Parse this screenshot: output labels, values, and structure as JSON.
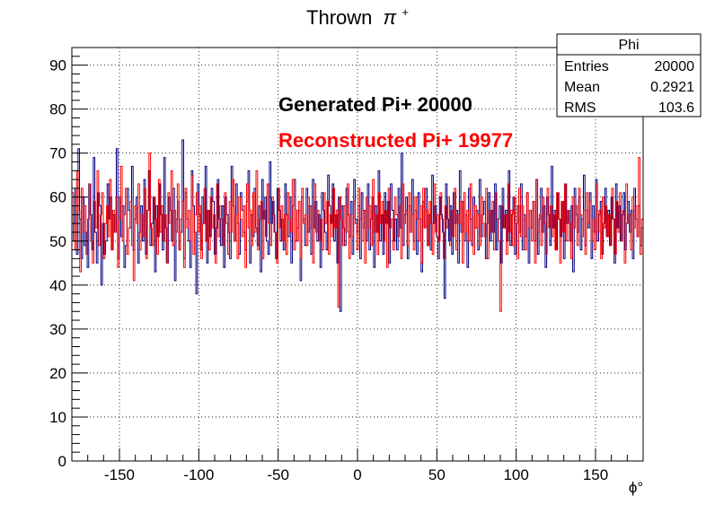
{
  "chart_data": {
    "type": "histogram",
    "title": "Thrown",
    "title_symbol": "π",
    "title_superscript": "+",
    "xlabel": "ϕ°",
    "ylabel": "",
    "xlim": [
      -180,
      180
    ],
    "ylim": [
      0,
      94
    ],
    "x_ticks": [
      -150,
      -100,
      -50,
      0,
      50,
      100,
      150
    ],
    "y_ticks": [
      0,
      10,
      20,
      30,
      40,
      50,
      60,
      70,
      80,
      90
    ],
    "grid": true,
    "bins": 360,
    "series": [
      {
        "color": "#000080",
        "values": [
          58,
          50,
          62,
          47,
          71,
          55,
          46,
          60,
          49,
          52,
          44,
          63,
          56,
          48,
          69,
          52,
          45,
          61,
          58,
          40,
          54,
          47,
          50,
          63,
          55,
          60,
          48,
          56,
          52,
          71,
          46,
          60,
          51,
          58,
          44,
          49,
          62,
          57,
          53,
          67,
          48,
          55,
          60,
          45,
          52,
          58,
          50,
          64,
          47,
          57,
          66,
          49,
          54,
          60,
          43,
          58,
          51,
          63,
          56,
          48,
          69,
          53,
          45,
          60,
          57,
          50,
          62,
          41,
          55,
          59,
          48,
          52,
          73,
          46,
          61,
          55,
          50,
          44,
          66,
          58,
          52,
          38,
          63,
          56,
          48,
          60,
          54,
          67,
          45,
          57,
          51,
          62,
          59,
          47,
          53,
          64,
          55,
          49,
          58,
          44,
          60,
          56,
          52,
          46,
          67,
          58,
          50,
          63,
          54,
          47,
          61,
          57,
          52,
          48,
          59,
          66,
          45,
          56,
          51,
          62,
          53,
          49,
          58,
          43,
          64,
          55,
          60,
          50,
          47,
          68,
          54,
          59,
          52,
          46,
          62,
          57,
          50,
          55,
          48,
          63,
          56,
          51,
          60,
          45,
          58,
          64,
          50,
          53,
          57,
          41,
          60,
          55,
          49,
          62,
          52,
          58,
          47,
          64,
          53,
          59,
          50,
          56,
          44,
          61,
          57,
          52,
          48,
          65,
          58,
          54,
          63,
          50,
          56,
          45,
          60,
          34,
          58,
          53,
          49,
          62,
          56,
          51,
          59,
          47,
          64,
          55,
          52,
          58,
          46,
          61,
          53,
          57,
          50,
          63,
          48,
          55,
          60,
          44,
          58,
          52,
          66,
          50,
          56,
          47,
          61,
          54,
          59,
          45,
          63,
          57,
          50,
          55,
          48,
          62,
          53,
          70,
          49,
          56,
          60,
          46,
          58,
          52,
          64,
          50,
          57,
          47,
          61,
          55,
          43,
          59,
          53,
          62,
          49,
          56,
          48,
          65,
          54,
          58,
          51,
          46,
          60,
          56,
          52,
          37,
          63,
          55,
          50,
          58,
          47,
          61,
          54,
          57,
          45,
          66,
          52,
          59,
          50,
          56,
          44,
          62,
          55,
          49,
          60,
          53,
          57,
          48,
          64,
          51,
          56,
          59,
          46,
          54,
          61,
          50,
          57,
          52,
          63,
          48,
          55,
          58,
          45,
          62,
          53,
          57,
          50,
          66,
          49,
          56,
          60,
          47,
          54,
          58,
          52,
          63,
          48,
          56,
          51,
          61,
          45,
          57,
          53,
          59,
          50,
          64,
          47,
          55,
          62,
          52,
          58,
          44,
          60,
          56,
          49,
          67,
          53,
          57,
          48,
          61,
          55,
          51,
          59,
          46,
          63,
          54,
          57,
          50,
          58,
          43,
          62,
          56,
          52,
          60,
          48,
          55,
          65,
          49,
          57,
          53,
          61,
          46,
          58,
          52,
          64,
          50,
          56,
          59,
          47,
          54,
          62,
          51,
          57,
          49,
          60,
          55,
          45,
          63,
          53,
          58,
          50,
          56,
          61,
          48,
          54,
          59,
          52,
          57,
          46,
          62,
          55,
          51,
          58,
          49,
          53
        ]
      },
      {
        "color": "#ff0000",
        "values": [
          61,
          54,
          48,
          66,
          57,
          43,
          62,
          52,
          58,
          47,
          55,
          63,
          50,
          45,
          59,
          53,
          66,
          49,
          56,
          61,
          46,
          54,
          58,
          51,
          64,
          48,
          57,
          52,
          60,
          44,
          55,
          67,
          50,
          56,
          62,
          47,
          53,
          59,
          49,
          41,
          58,
          54,
          63,
          48,
          56,
          51,
          62,
          46,
          57,
          70,
          53,
          49,
          60,
          55,
          47,
          64,
          52,
          58,
          50,
          56,
          45,
          61,
          54,
          66,
          49,
          57,
          52,
          63,
          48,
          55,
          59,
          44,
          62,
          53,
          57,
          50,
          65,
          47,
          56,
          61,
          52,
          58,
          46,
          54,
          62,
          50,
          57,
          48,
          60,
          53,
          56,
          45,
          63,
          51,
          58,
          55,
          49,
          61,
          54,
          47,
          59,
          52,
          64,
          50,
          56,
          46,
          60,
          55,
          51,
          58,
          44,
          63,
          53,
          57,
          49,
          61,
          52,
          66,
          48,
          55,
          59,
          46,
          57,
          51,
          63,
          54,
          49,
          60,
          56,
          52,
          45,
          62,
          53,
          58,
          50,
          56,
          47,
          61,
          55,
          52,
          64,
          48,
          57,
          50,
          59,
          46,
          62,
          54,
          56,
          49,
          60,
          53,
          58,
          45,
          63,
          52,
          57,
          50,
          55,
          48,
          61,
          54,
          59,
          47,
          56,
          51,
          62,
          53,
          57,
          35,
          60,
          55,
          49,
          58,
          52,
          63,
          46,
          56,
          51,
          59,
          54,
          48,
          62,
          55,
          50,
          57,
          45,
          60,
          53,
          58,
          49,
          64,
          52,
          56,
          47,
          61,
          54,
          59,
          50,
          57,
          44,
          62,
          53,
          55,
          48,
          60,
          56,
          51,
          58,
          46,
          63,
          54,
          57,
          49,
          61,
          52,
          56,
          48,
          60,
          55,
          50,
          58,
          45,
          62,
          53,
          57,
          49,
          59,
          54,
          47,
          63,
          52,
          56,
          50,
          61,
          55,
          46,
          58,
          53,
          60,
          49,
          57,
          51,
          62,
          48,
          56,
          54,
          59,
          45,
          61,
          52,
          57,
          50,
          63,
          55,
          47,
          58,
          53,
          56,
          49,
          60,
          54,
          51,
          62,
          46,
          57,
          52,
          59,
          48,
          61,
          55,
          50,
          34,
          58,
          53,
          56,
          47,
          63,
          52,
          57,
          49,
          60,
          54,
          46,
          62,
          51,
          58,
          55,
          48,
          61,
          53,
          57,
          50,
          59,
          45,
          64,
          52,
          56,
          49,
          60,
          54,
          47,
          62,
          53,
          58,
          51,
          56,
          48,
          61,
          55,
          45,
          59,
          52,
          63,
          50,
          57,
          54,
          46,
          60,
          53,
          58,
          49,
          62,
          56,
          51,
          57,
          47,
          61,
          54,
          59,
          50,
          55,
          48,
          63,
          52,
          57,
          46,
          60,
          53,
          58,
          51,
          56,
          49,
          62,
          55,
          47,
          59,
          52,
          61,
          50,
          57,
          45,
          63,
          54,
          56,
          48,
          60,
          53,
          58,
          51,
          69,
          47,
          55
        ]
      }
    ],
    "annotations": [
      {
        "text": "Generated Pi+ 20000",
        "color": "#000000"
      },
      {
        "text": "Reconstructed Pi+ 19977",
        "color": "#ff0000"
      }
    ],
    "stats_box": {
      "title": "Phi",
      "rows": [
        {
          "label": "Entries",
          "value": "20000"
        },
        {
          "label": "Mean",
          "value": "0.2921"
        },
        {
          "label": "RMS",
          "value": "103.6"
        }
      ],
      "position": "top-right"
    }
  }
}
